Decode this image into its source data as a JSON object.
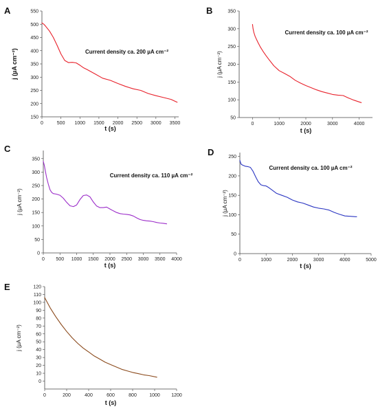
{
  "chart_data": [
    {
      "id": "A",
      "type": "line",
      "panel_label": "A",
      "title": "",
      "xlabel": "t (s)",
      "ylabel": "j (µA cm⁻²)",
      "annotation": "Current density ca. 200 µA cm⁻²",
      "xlim": [
        0,
        3600
      ],
      "ylim": [
        150,
        550
      ],
      "xticks": [
        0,
        500,
        1000,
        1500,
        2000,
        2500,
        3000,
        3500
      ],
      "yticks": [
        150,
        200,
        250,
        300,
        350,
        400,
        450,
        500,
        550
      ],
      "grid": false,
      "series": [
        {
          "color": "#e8202a",
          "x": [
            0,
            50,
            100,
            200,
            300,
            400,
            500,
            600,
            700,
            800,
            900,
            1000,
            1100,
            1200,
            1400,
            1600,
            1800,
            2000,
            2200,
            2400,
            2600,
            2800,
            3000,
            3200,
            3400,
            3560
          ],
          "y": [
            505,
            500,
            492,
            474,
            450,
            420,
            388,
            363,
            355,
            356,
            354,
            345,
            335,
            328,
            312,
            296,
            288,
            276,
            265,
            256,
            250,
            238,
            230,
            223,
            216,
            205
          ]
        }
      ]
    },
    {
      "id": "B",
      "type": "line",
      "panel_label": "B",
      "title": "",
      "xlabel": "t (s)",
      "ylabel": "j (µA cm⁻²)",
      "annotation": "Current density ca. 100 µA cm⁻²",
      "xlim": [
        -500,
        4500
      ],
      "ylim": [
        50,
        350
      ],
      "xticks": [
        0,
        1000,
        2000,
        3000,
        4000
      ],
      "yticks": [
        50,
        100,
        150,
        200,
        250,
        300,
        350
      ],
      "grid": false,
      "series": [
        {
          "color": "#e8202a",
          "x": [
            0,
            20,
            50,
            100,
            200,
            300,
            400,
            500,
            600,
            800,
            1000,
            1200,
            1400,
            1600,
            1800,
            2000,
            2200,
            2400,
            2600,
            2800,
            3000,
            3200,
            3400,
            3600,
            3800,
            4000,
            4080
          ],
          "y": [
            312,
            300,
            290,
            278,
            262,
            248,
            236,
            225,
            215,
            196,
            182,
            174,
            166,
            155,
            147,
            140,
            134,
            128,
            123,
            119,
            115,
            113,
            112,
            105,
            99,
            94,
            92
          ]
        }
      ]
    },
    {
      "id": "C",
      "type": "line",
      "panel_label": "C",
      "title": "",
      "xlabel": "t (s)",
      "ylabel": "j (µA cm⁻²)",
      "annotation": "Current density ca. 110 µA cm⁻²",
      "xlim": [
        0,
        4000
      ],
      "ylim": [
        0,
        380
      ],
      "xticks": [
        0,
        500,
        1000,
        1500,
        2000,
        2500,
        3000,
        3500,
        4000
      ],
      "yticks": [
        0,
        50,
        100,
        150,
        200,
        250,
        300,
        350
      ],
      "grid": false,
      "series": [
        {
          "color": "#9b2cc9",
          "x": [
            0,
            30,
            60,
            100,
            150,
            200,
            250,
            300,
            400,
            500,
            600,
            700,
            800,
            900,
            1000,
            1100,
            1200,
            1300,
            1400,
            1500,
            1600,
            1700,
            1800,
            1900,
            2000,
            2100,
            2200,
            2300,
            2400,
            2500,
            2600,
            2700,
            2800,
            2900,
            3000,
            3100,
            3200,
            3300,
            3400,
            3500,
            3600,
            3700
          ],
          "y": [
            340,
            325,
            305,
            280,
            255,
            235,
            225,
            220,
            218,
            214,
            203,
            188,
            175,
            172,
            178,
            198,
            213,
            215,
            208,
            189,
            174,
            168,
            168,
            170,
            163,
            156,
            150,
            146,
            144,
            143,
            141,
            137,
            130,
            124,
            121,
            119,
            118,
            116,
            113,
            111,
            110,
            108
          ]
        }
      ]
    },
    {
      "id": "D",
      "type": "line",
      "panel_label": "D",
      "title": "",
      "xlabel": "t (s)",
      "ylabel": "j (µA cm⁻²)",
      "annotation": "Current density ca. 100 µA cm⁻²",
      "xlim": [
        0,
        5000
      ],
      "ylim": [
        0,
        260
      ],
      "xticks": [
        0,
        1000,
        2000,
        3000,
        4000,
        5000
      ],
      "yticks": [
        0,
        50,
        100,
        150,
        200,
        250
      ],
      "grid": false,
      "series": [
        {
          "color": "#2a35c2",
          "x": [
            0,
            20,
            50,
            100,
            200,
            300,
            400,
            500,
            600,
            700,
            800,
            900,
            1000,
            1100,
            1200,
            1400,
            1600,
            1800,
            2000,
            2200,
            2400,
            2600,
            2800,
            3000,
            3200,
            3400,
            3600,
            3800,
            4000,
            4200,
            4400,
            4450
          ],
          "y": [
            240,
            235,
            230,
            228,
            225,
            224,
            222,
            212,
            198,
            185,
            177,
            175,
            174,
            170,
            165,
            155,
            150,
            145,
            138,
            133,
            130,
            125,
            120,
            117,
            115,
            112,
            106,
            101,
            97,
            96,
            95,
            95
          ]
        }
      ]
    },
    {
      "id": "E",
      "type": "line",
      "panel_label": "E",
      "title": "",
      "xlabel": "t (s)",
      "ylabel": "j (µA cm⁻²)",
      "annotation": "",
      "xlim": [
        0,
        1200
      ],
      "ylim": [
        -10,
        120
      ],
      "xticks": [
        0,
        200,
        400,
        600,
        800,
        1000,
        1200
      ],
      "yticks": [
        0,
        10,
        20,
        30,
        40,
        50,
        60,
        70,
        80,
        90,
        100,
        110,
        120
      ],
      "grid": false,
      "series": [
        {
          "color": "#8b4a1c",
          "x": [
            0,
            50,
            100,
            150,
            200,
            250,
            300,
            350,
            400,
            450,
            500,
            550,
            600,
            650,
            700,
            750,
            800,
            850,
            900,
            950,
            1020
          ],
          "y": [
            106,
            93,
            82,
            72,
            63,
            55,
            48,
            42,
            37,
            32,
            28,
            24,
            21,
            18,
            15,
            13,
            11,
            9.5,
            8,
            7,
            5
          ]
        }
      ]
    }
  ]
}
